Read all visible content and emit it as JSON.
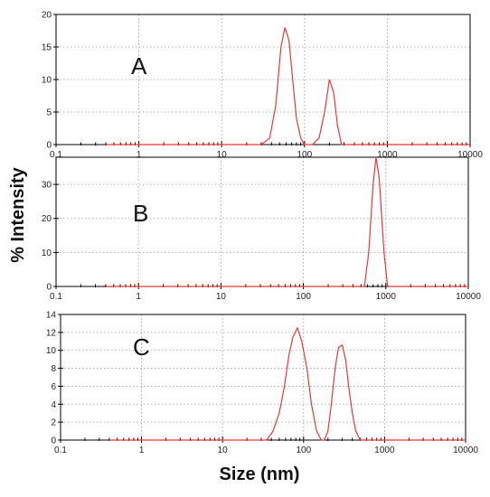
{
  "figure": {
    "ylabel": "% Intensity",
    "xlabel": "Size (nm)"
  },
  "colors": {
    "series": "#e8383a",
    "axis": "#000000",
    "grid": "#9a9a9a"
  },
  "chart_data": [
    {
      "type": "line",
      "panel_label": "A",
      "xscale": "log",
      "xlim": [
        0.1,
        10000
      ],
      "ylim": [
        0,
        20
      ],
      "x_ticks": [
        "0.1",
        "1",
        "10",
        "100",
        "1000",
        "10000"
      ],
      "y_ticks": [
        "0",
        "5",
        "10",
        "15",
        "20"
      ],
      "grid": true,
      "series": [
        {
          "x": [
            0.4,
            30,
            38,
            45,
            52,
            58,
            65,
            72,
            80,
            90,
            100,
            110,
            125,
            150,
            175,
            200,
            225,
            250,
            280,
            320,
            10000
          ],
          "y": [
            0,
            0,
            1,
            6,
            15,
            18,
            16,
            10,
            4,
            1,
            0,
            0,
            0,
            1,
            5,
            10,
            8,
            3,
            0,
            0,
            0
          ]
        }
      ]
    },
    {
      "type": "line",
      "panel_label": "B",
      "xscale": "log",
      "xlim": [
        0.1,
        10000
      ],
      "ylim": [
        0,
        38
      ],
      "x_ticks": [
        "0.1",
        "1",
        "10",
        "100",
        "1000",
        "10000"
      ],
      "y_ticks": [
        "0",
        "10",
        "20",
        "30"
      ],
      "grid": true,
      "series": [
        {
          "x": [
            0.4,
            550,
            620,
            700,
            760,
            830,
            950,
            1050,
            10000
          ],
          "y": [
            0,
            0,
            10,
            30,
            38,
            32,
            10,
            0,
            0
          ]
        }
      ]
    },
    {
      "type": "line",
      "panel_label": "C",
      "xscale": "log",
      "xlim": [
        0.1,
        10000
      ],
      "ylim": [
        0,
        14
      ],
      "x_ticks": [
        "0.1",
        "1",
        "10",
        "100",
        "1000",
        "10000"
      ],
      "y_ticks": [
        "0",
        "2",
        "4",
        "6",
        "8",
        "10",
        "12",
        "14"
      ],
      "grid": true,
      "series": [
        {
          "x": [
            0.4,
            35,
            42,
            50,
            58,
            66,
            74,
            84,
            95,
            110,
            125,
            145,
            165,
            180,
            200,
            220,
            245,
            270,
            300,
            330,
            360,
            400,
            440,
            500,
            10000
          ],
          "y": [
            0,
            0,
            1,
            3,
            6,
            9.5,
            11.5,
            12.5,
            11,
            8,
            4,
            1,
            0,
            0,
            1,
            4,
            8,
            10.3,
            10.6,
            9,
            6,
            3,
            1,
            0,
            0
          ]
        }
      ]
    }
  ]
}
